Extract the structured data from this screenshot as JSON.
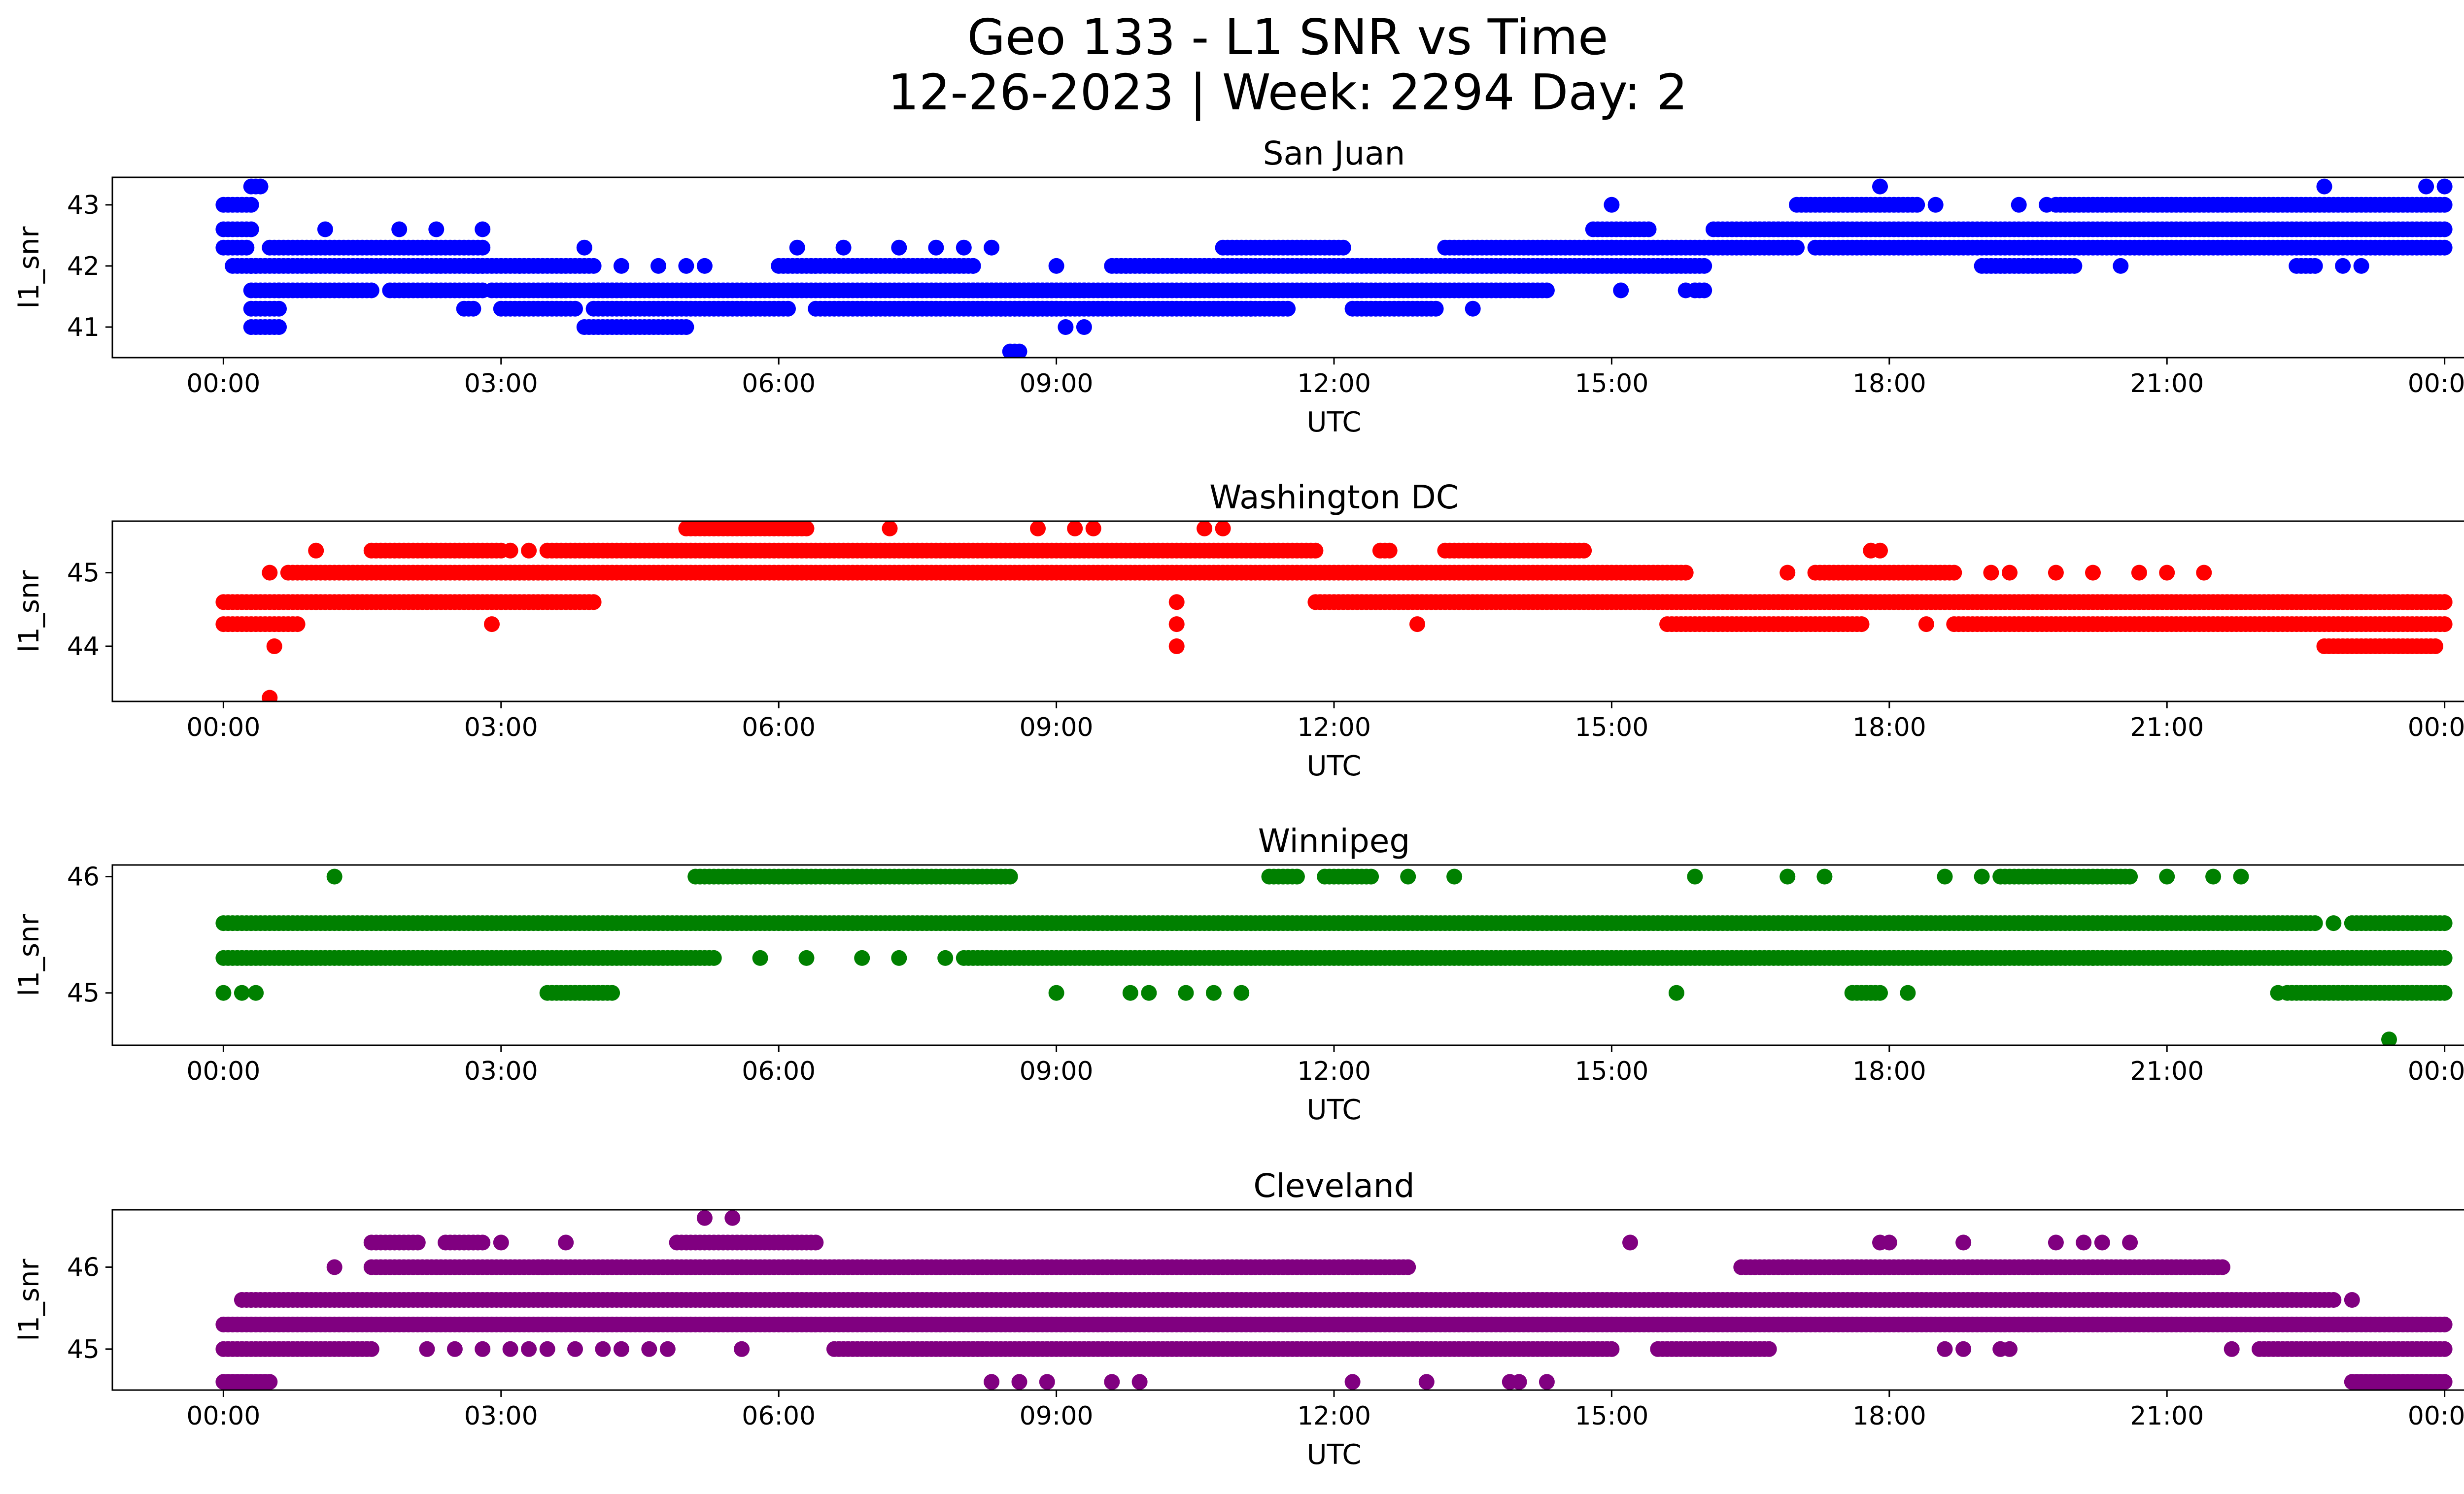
{
  "figure": {
    "title_line1": "Geo 133 - L1 SNR vs Time",
    "title_line2": "12-26-2023 | Week: 2294 Day: 2"
  },
  "chart_data": [
    {
      "type": "scatter",
      "title": "San Juan",
      "xlabel": "UTC",
      "ylabel": "l1_snr",
      "color": "#0000ff",
      "x_ticks": [
        "00:00",
        "03:00",
        "06:00",
        "09:00",
        "12:00",
        "15:00",
        "18:00",
        "21:00",
        "00:00"
      ],
      "x_tick_hours": [
        0,
        3,
        6,
        9,
        12,
        15,
        18,
        21,
        24
      ],
      "xlim_hours": [
        -1.2,
        25.2
      ],
      "y_ticks": [
        41,
        42,
        43
      ],
      "ylim": [
        40.5,
        43.45
      ],
      "series": [
        {
          "segments": [
            [
              0.0,
              0.3,
              43.0
            ],
            [
              0.0,
              0.3,
              42.6
            ],
            [
              0.0,
              0.25,
              42.3
            ],
            [
              0.1,
              0.35,
              42.0
            ],
            [
              0.3,
              0.4,
              43.3
            ],
            [
              0.3,
              0.6,
              41.6
            ],
            [
              0.3,
              0.6,
              41.3
            ],
            [
              0.3,
              0.6,
              41.0
            ],
            [
              0.5,
              2.8,
              42.3
            ],
            [
              0.3,
              2.8,
              42.0
            ],
            [
              0.6,
              1.6,
              41.6
            ],
            [
              1.8,
              2.8,
              41.6
            ],
            [
              2.6,
              2.7,
              41.3
            ],
            [
              2.7,
              3.2,
              42.0
            ],
            [
              3.0,
              3.8,
              41.3
            ],
            [
              2.9,
              3.7,
              41.6
            ],
            [
              3.2,
              4.0,
              42.0
            ],
            [
              3.5,
              4.3,
              41.6
            ],
            [
              3.9,
              5.0,
              41.0
            ],
            [
              4.0,
              6.1,
              41.3
            ],
            [
              4.0,
              9.3,
              41.6
            ],
            [
              6.0,
              8.1,
              42.0
            ],
            [
              6.4,
              9.0,
              41.3
            ],
            [
              8.0,
              12.3,
              41.6
            ],
            [
              8.4,
              11.5,
              41.3
            ],
            [
              8.5,
              8.6,
              40.6
            ],
            [
              9.6,
              14.0,
              42.0
            ],
            [
              10.8,
              12.1,
              42.3
            ],
            [
              12.0,
              14.3,
              41.6
            ],
            [
              12.2,
              13.1,
              41.3
            ],
            [
              13.2,
              15.0,
              42.3
            ],
            [
              14.0,
              16.0,
              42.0
            ],
            [
              14.8,
              15.4,
              42.6
            ],
            [
              15.0,
              17.0,
              42.3
            ],
            [
              16.1,
              17.5,
              42.6
            ],
            [
              17.0,
              18.3,
              43.0
            ],
            [
              16.5,
              24.0,
              42.6
            ],
            [
              17.2,
              24.0,
              42.3
            ],
            [
              19.0,
              20.0,
              42.0
            ],
            [
              19.8,
              24.0,
              43.0
            ],
            [
              22.4,
              22.6,
              42.0
            ],
            [
              15.9,
              16.0,
              41.6
            ]
          ],
          "singles": [
            [
              1.1,
              42.6
            ],
            [
              1.9,
              42.6
            ],
            [
              2.3,
              42.6
            ],
            [
              2.8,
              42.6
            ],
            [
              3.9,
              42.3
            ],
            [
              4.3,
              42.0
            ],
            [
              4.7,
              42.0
            ],
            [
              5.0,
              42.0
            ],
            [
              5.2,
              42.0
            ],
            [
              6.2,
              42.3
            ],
            [
              6.7,
              42.3
            ],
            [
              7.3,
              42.3
            ],
            [
              7.7,
              42.3
            ],
            [
              8.0,
              42.3
            ],
            [
              8.3,
              42.3
            ],
            [
              8.1,
              42.0
            ],
            [
              9.0,
              42.0
            ],
            [
              9.1,
              41.0
            ],
            [
              9.3,
              41.0
            ],
            [
              11.1,
              41.3
            ],
            [
              13.5,
              41.3
            ],
            [
              15.1,
              41.6
            ],
            [
              15.8,
              41.6
            ],
            [
              15.0,
              43.0
            ],
            [
              17.9,
              43.3
            ],
            [
              22.7,
              43.3
            ],
            [
              23.8,
              43.3
            ],
            [
              24.0,
              43.3
            ],
            [
              18.5,
              43.0
            ],
            [
              19.4,
              43.0
            ],
            [
              19.7,
              43.0
            ],
            [
              20.5,
              42.0
            ],
            [
              22.9,
              42.0
            ],
            [
              23.1,
              42.0
            ]
          ]
        }
      ]
    },
    {
      "type": "scatter",
      "title": "Washington DC",
      "xlabel": "UTC",
      "ylabel": "l1_snr",
      "color": "#ff0000",
      "x_ticks": [
        "00:00",
        "03:00",
        "06:00",
        "09:00",
        "12:00",
        "15:00",
        "18:00",
        "21:00",
        "00:00"
      ],
      "x_tick_hours": [
        0,
        3,
        6,
        9,
        12,
        15,
        18,
        21,
        24
      ],
      "xlim_hours": [
        -1.2,
        25.2
      ],
      "y_ticks": [
        44,
        45
      ],
      "ylim": [
        43.25,
        45.7
      ],
      "series": [
        {
          "segments": [
            [
              0.0,
              1.0,
              44.6
            ],
            [
              0.0,
              0.8,
              44.3
            ],
            [
              0.7,
              3.5,
              45.0
            ],
            [
              1.6,
              3.0,
              45.3
            ],
            [
              1.0,
              4.0,
              44.6
            ],
            [
              3.5,
              11.8,
              45.3
            ],
            [
              3.0,
              15.8,
              45.0
            ],
            [
              5.0,
              6.3,
              45.6
            ],
            [
              11.8,
              24.0,
              44.6
            ],
            [
              15.6,
              17.7,
              44.3
            ],
            [
              18.7,
              24.0,
              44.3
            ],
            [
              13.2,
              14.7,
              45.3
            ],
            [
              17.2,
              18.7,
              45.0
            ],
            [
              22.7,
              23.9,
              44.0
            ],
            [
              12.5,
              12.6,
              45.3
            ]
          ],
          "singles": [
            [
              0.5,
              45.0
            ],
            [
              0.55,
              44.0
            ],
            [
              0.5,
              43.3
            ],
            [
              1.0,
              45.3
            ],
            [
              2.9,
              44.3
            ],
            [
              3.1,
              45.3
            ],
            [
              3.3,
              45.3
            ],
            [
              7.2,
              45.6
            ],
            [
              8.8,
              45.6
            ],
            [
              9.2,
              45.6
            ],
            [
              9.4,
              45.6
            ],
            [
              10.3,
              44.6
            ],
            [
              10.3,
              44.3
            ],
            [
              10.3,
              44.0
            ],
            [
              10.6,
              45.6
            ],
            [
              10.8,
              45.6
            ],
            [
              12.9,
              44.3
            ],
            [
              16.9,
              45.0
            ],
            [
              17.8,
              45.3
            ],
            [
              17.9,
              45.3
            ],
            [
              19.1,
              45.0
            ],
            [
              19.3,
              45.0
            ],
            [
              19.8,
              45.0
            ],
            [
              20.2,
              45.0
            ],
            [
              20.7,
              45.0
            ],
            [
              21.0,
              45.0
            ],
            [
              21.4,
              45.0
            ],
            [
              18.4,
              44.3
            ],
            [
              23.1,
              44.6
            ],
            [
              23.6,
              44.6
            ],
            [
              24.0,
              44.6
            ]
          ]
        }
      ]
    },
    {
      "type": "scatter",
      "title": "Winnipeg",
      "xlabel": "UTC",
      "ylabel": "l1_snr",
      "color": "#008000",
      "x_ticks": [
        "00:00",
        "03:00",
        "06:00",
        "09:00",
        "12:00",
        "15:00",
        "18:00",
        "21:00",
        "00:00"
      ],
      "x_tick_hours": [
        0,
        3,
        6,
        9,
        12,
        15,
        18,
        21,
        24
      ],
      "xlim_hours": [
        -1.2,
        25.2
      ],
      "y_ticks": [
        45,
        46
      ],
      "ylim": [
        44.55,
        46.1
      ],
      "series": [
        {
          "segments": [
            [
              0.0,
              22.6,
              45.6
            ],
            [
              0.0,
              5.3,
              45.3
            ],
            [
              5.1,
              8.5,
              46.0
            ],
            [
              8.0,
              21.6,
              45.3
            ],
            [
              3.5,
              4.2,
              45.0
            ],
            [
              11.3,
              11.6,
              46.0
            ],
            [
              11.9,
              12.4,
              46.0
            ],
            [
              19.2,
              20.6,
              46.0
            ],
            [
              21.4,
              24.0,
              45.3
            ],
            [
              22.3,
              24.0,
              45.0
            ],
            [
              23.0,
              24.0,
              45.6
            ],
            [
              17.6,
              17.9,
              45.0
            ]
          ],
          "singles": [
            [
              0.0,
              45.0
            ],
            [
              0.2,
              45.0
            ],
            [
              0.35,
              45.0
            ],
            [
              1.2,
              46.0
            ],
            [
              5.8,
              45.3
            ],
            [
              6.3,
              45.3
            ],
            [
              6.9,
              45.3
            ],
            [
              7.3,
              45.3
            ],
            [
              7.8,
              45.3
            ],
            [
              9.0,
              45.0
            ],
            [
              9.8,
              45.0
            ],
            [
              10.0,
              45.0
            ],
            [
              10.4,
              45.0
            ],
            [
              10.7,
              45.0
            ],
            [
              11.0,
              45.0
            ],
            [
              12.8,
              46.0
            ],
            [
              13.3,
              46.0
            ],
            [
              15.7,
              45.0
            ],
            [
              15.9,
              46.0
            ],
            [
              16.9,
              46.0
            ],
            [
              17.3,
              46.0
            ],
            [
              18.2,
              45.0
            ],
            [
              18.6,
              46.0
            ],
            [
              19.0,
              46.0
            ],
            [
              21.0,
              46.0
            ],
            [
              21.5,
              46.0
            ],
            [
              21.8,
              46.0
            ],
            [
              22.2,
              45.0
            ],
            [
              22.8,
              45.6
            ],
            [
              23.4,
              44.6
            ],
            [
              20.2,
              45.3
            ],
            [
              20.5,
              45.3
            ]
          ]
        }
      ]
    },
    {
      "type": "scatter",
      "title": "Cleveland",
      "xlabel": "UTC",
      "ylabel": "l1_snr",
      "color": "#800080",
      "x_ticks": [
        "00:00",
        "03:00",
        "06:00",
        "09:00",
        "12:00",
        "15:00",
        "18:00",
        "21:00",
        "00:00"
      ],
      "x_tick_hours": [
        0,
        3,
        6,
        9,
        12,
        15,
        18,
        21,
        24
      ],
      "xlim_hours": [
        -1.2,
        25.2
      ],
      "y_ticks": [
        45,
        46
      ],
      "ylim": [
        44.5,
        46.7
      ],
      "series": [
        {
          "segments": [
            [
              0.0,
              24.0,
              45.3
            ],
            [
              0.2,
              22.8,
              45.6
            ],
            [
              0.0,
              1.6,
              45.0
            ],
            [
              1.6,
              3.5,
              46.0
            ],
            [
              3.4,
              11.5,
              46.0
            ],
            [
              11.5,
              12.8,
              46.0
            ],
            [
              0.0,
              0.5,
              44.6
            ],
            [
              8.0,
              12.0,
              45.0
            ],
            [
              12.0,
              15.0,
              45.0
            ],
            [
              15.5,
              16.7,
              45.0
            ],
            [
              16.4,
              21.6,
              46.0
            ],
            [
              22.0,
              24.0,
              45.0
            ],
            [
              23.0,
              24.0,
              44.6
            ],
            [
              4.9,
              6.4,
              46.3
            ],
            [
              1.6,
              2.1,
              46.3
            ],
            [
              2.4,
              2.8,
              46.3
            ],
            [
              6.6,
              8.2,
              45.0
            ]
          ],
          "singles": [
            [
              1.2,
              46.0
            ],
            [
              2.2,
              45.0
            ],
            [
              2.5,
              45.0
            ],
            [
              2.8,
              45.0
            ],
            [
              3.0,
              46.3
            ],
            [
              3.1,
              45.0
            ],
            [
              3.3,
              45.0
            ],
            [
              3.5,
              45.0
            ],
            [
              3.7,
              46.3
            ],
            [
              3.8,
              45.0
            ],
            [
              4.1,
              45.0
            ],
            [
              4.3,
              45.0
            ],
            [
              4.6,
              45.0
            ],
            [
              4.8,
              45.0
            ],
            [
              5.2,
              46.6
            ],
            [
              5.5,
              46.6
            ],
            [
              5.6,
              45.0
            ],
            [
              8.3,
              44.6
            ],
            [
              8.6,
              44.6
            ],
            [
              8.9,
              44.6
            ],
            [
              9.6,
              44.6
            ],
            [
              9.9,
              44.6
            ],
            [
              12.2,
              44.6
            ],
            [
              13.0,
              44.6
            ],
            [
              13.9,
              44.6
            ],
            [
              14.0,
              44.6
            ],
            [
              14.3,
              44.6
            ],
            [
              15.2,
              46.3
            ],
            [
              17.9,
              46.3
            ],
            [
              18.0,
              46.3
            ],
            [
              18.8,
              46.3
            ],
            [
              19.8,
              46.3
            ],
            [
              20.1,
              46.3
            ],
            [
              20.3,
              46.3
            ],
            [
              20.6,
              46.3
            ],
            [
              18.6,
              45.0
            ],
            [
              18.8,
              45.0
            ],
            [
              19.2,
              45.0
            ],
            [
              19.3,
              45.0
            ],
            [
              21.7,
              45.0
            ],
            [
              23.0,
              45.6
            ],
            [
              23.3,
              44.6
            ]
          ]
        }
      ]
    }
  ]
}
